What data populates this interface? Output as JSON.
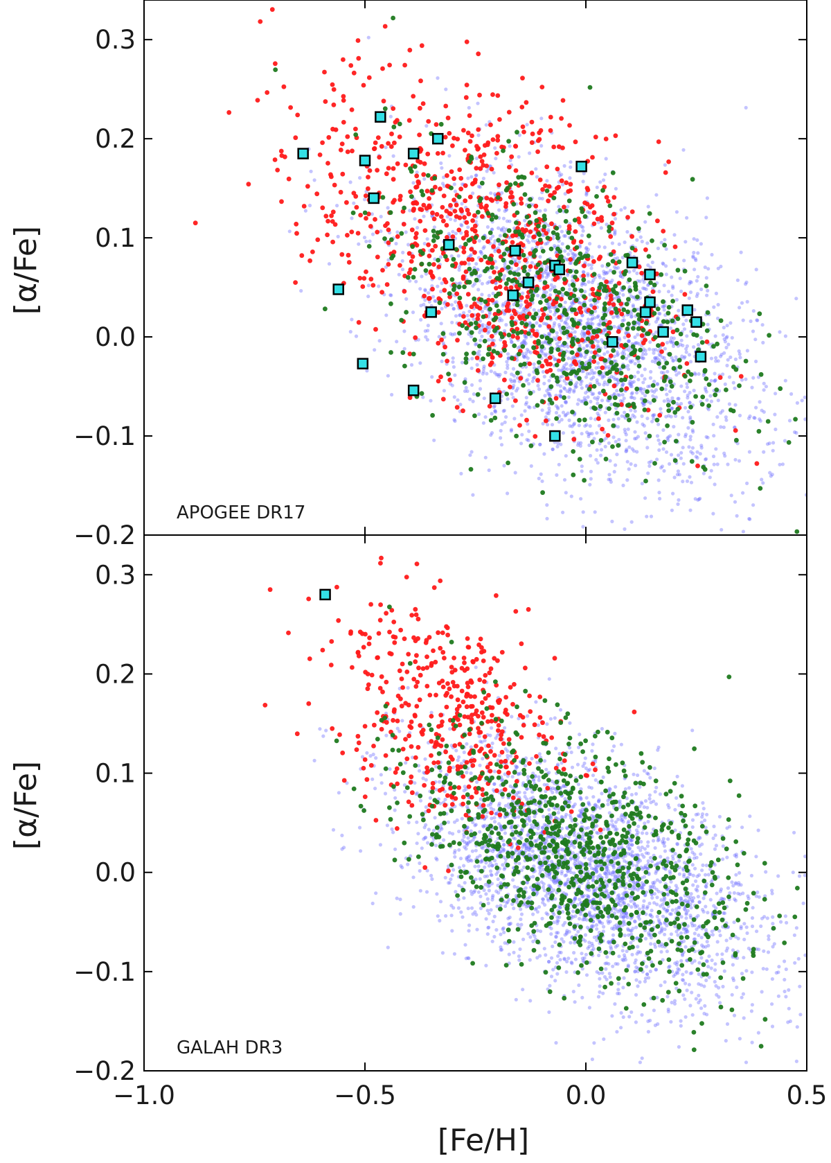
{
  "chart_data": [
    {
      "type": "scatter",
      "panel_label": "APOGEE DR17",
      "xlabel": "[Fe/H]",
      "ylabel": "[α/Fe]",
      "xlim": [
        -1.0,
        0.5
      ],
      "ylim": [
        -0.2,
        0.34
      ],
      "xticks": [
        -1.0,
        -0.5,
        0.0,
        0.5
      ],
      "xtick_labels": [
        "−1.0",
        "−0.5",
        "0.0",
        "0.5"
      ],
      "yticks": [
        -0.2,
        -0.1,
        0.0,
        0.1,
        0.2,
        0.3
      ],
      "ytick_labels": [
        "−0.2",
        "−0.1",
        "0.0",
        "0.1",
        "0.2",
        "0.3"
      ],
      "grid": false,
      "legend": "none",
      "series_colors": {
        "blue": "#6b6bff",
        "red": "#ff1a1a",
        "green": "#1f7a1f",
        "highlight": "#34e0e6"
      },
      "density_model": {
        "blue": {
          "count": 2600,
          "center": [
            -0.02,
            0.005
          ],
          "spread": [
            0.2,
            0.068
          ],
          "slope": -0.17
        },
        "red": {
          "count": 850,
          "center": [
            -0.22,
            0.095
          ],
          "spread": [
            0.2,
            0.075
          ],
          "slope": -0.2
        },
        "green": {
          "count": 650,
          "center": [
            -0.06,
            0.03
          ],
          "spread": [
            0.19,
            0.065
          ],
          "slope": -0.16
        }
      },
      "highlight_points": [
        {
          "x": -0.64,
          "y": 0.185
        },
        {
          "x": -0.5,
          "y": 0.178
        },
        {
          "x": -0.465,
          "y": 0.222
        },
        {
          "x": -0.48,
          "y": 0.14
        },
        {
          "x": -0.39,
          "y": 0.185
        },
        {
          "x": -0.335,
          "y": 0.2
        },
        {
          "x": -0.31,
          "y": 0.093
        },
        {
          "x": -0.01,
          "y": 0.172
        },
        {
          "x": -0.16,
          "y": 0.087
        },
        {
          "x": -0.07,
          "y": 0.072
        },
        {
          "x": -0.06,
          "y": 0.068
        },
        {
          "x": -0.13,
          "y": 0.055
        },
        {
          "x": -0.165,
          "y": 0.042
        },
        {
          "x": -0.56,
          "y": 0.048
        },
        {
          "x": -0.35,
          "y": 0.025
        },
        {
          "x": 0.105,
          "y": 0.075
        },
        {
          "x": 0.145,
          "y": 0.063
        },
        {
          "x": 0.145,
          "y": 0.035
        },
        {
          "x": 0.135,
          "y": 0.025
        },
        {
          "x": 0.23,
          "y": 0.027
        },
        {
          "x": 0.25,
          "y": 0.015
        },
        {
          "x": 0.175,
          "y": 0.005
        },
        {
          "x": 0.06,
          "y": -0.005
        },
        {
          "x": 0.26,
          "y": -0.02
        },
        {
          "x": -0.505,
          "y": -0.027
        },
        {
          "x": -0.39,
          "y": -0.054
        },
        {
          "x": -0.205,
          "y": -0.062
        },
        {
          "x": -0.07,
          "y": -0.1
        }
      ]
    },
    {
      "type": "scatter",
      "panel_label": "GALAH DR3",
      "xlabel": "[Fe/H]",
      "ylabel": "[α/Fe]",
      "xlim": [
        -1.0,
        0.5
      ],
      "ylim": [
        -0.2,
        0.34
      ],
      "xticks": [
        -1.0,
        -0.5,
        0.0,
        0.5
      ],
      "xtick_labels": [
        "−1.0",
        "−0.5",
        "0.0",
        "0.5"
      ],
      "yticks": [
        -0.2,
        -0.1,
        0.0,
        0.1,
        0.2,
        0.3
      ],
      "ytick_labels": [
        "−0.2",
        "−0.1",
        "0.0",
        "0.1",
        "0.2",
        "0.3"
      ],
      "grid": false,
      "legend": "none",
      "series_colors": {
        "blue": "#6b6bff",
        "red": "#ff1a1a",
        "green": "#1f7a1f",
        "highlight": "#34e0e6"
      },
      "density_model": {
        "blue": {
          "count": 2800,
          "center": [
            0.0,
            0.0
          ],
          "spread": [
            0.2,
            0.055
          ],
          "slope": -0.16
        },
        "red": {
          "count": 420,
          "center": [
            -0.32,
            0.16
          ],
          "spread": [
            0.13,
            0.055
          ],
          "slope": -0.15
        },
        "green": {
          "count": 900,
          "center": [
            -0.02,
            0.02
          ],
          "spread": [
            0.18,
            0.055
          ],
          "slope": -0.17
        }
      },
      "highlight_points": [
        {
          "x": -0.59,
          "y": 0.28
        }
      ]
    }
  ]
}
